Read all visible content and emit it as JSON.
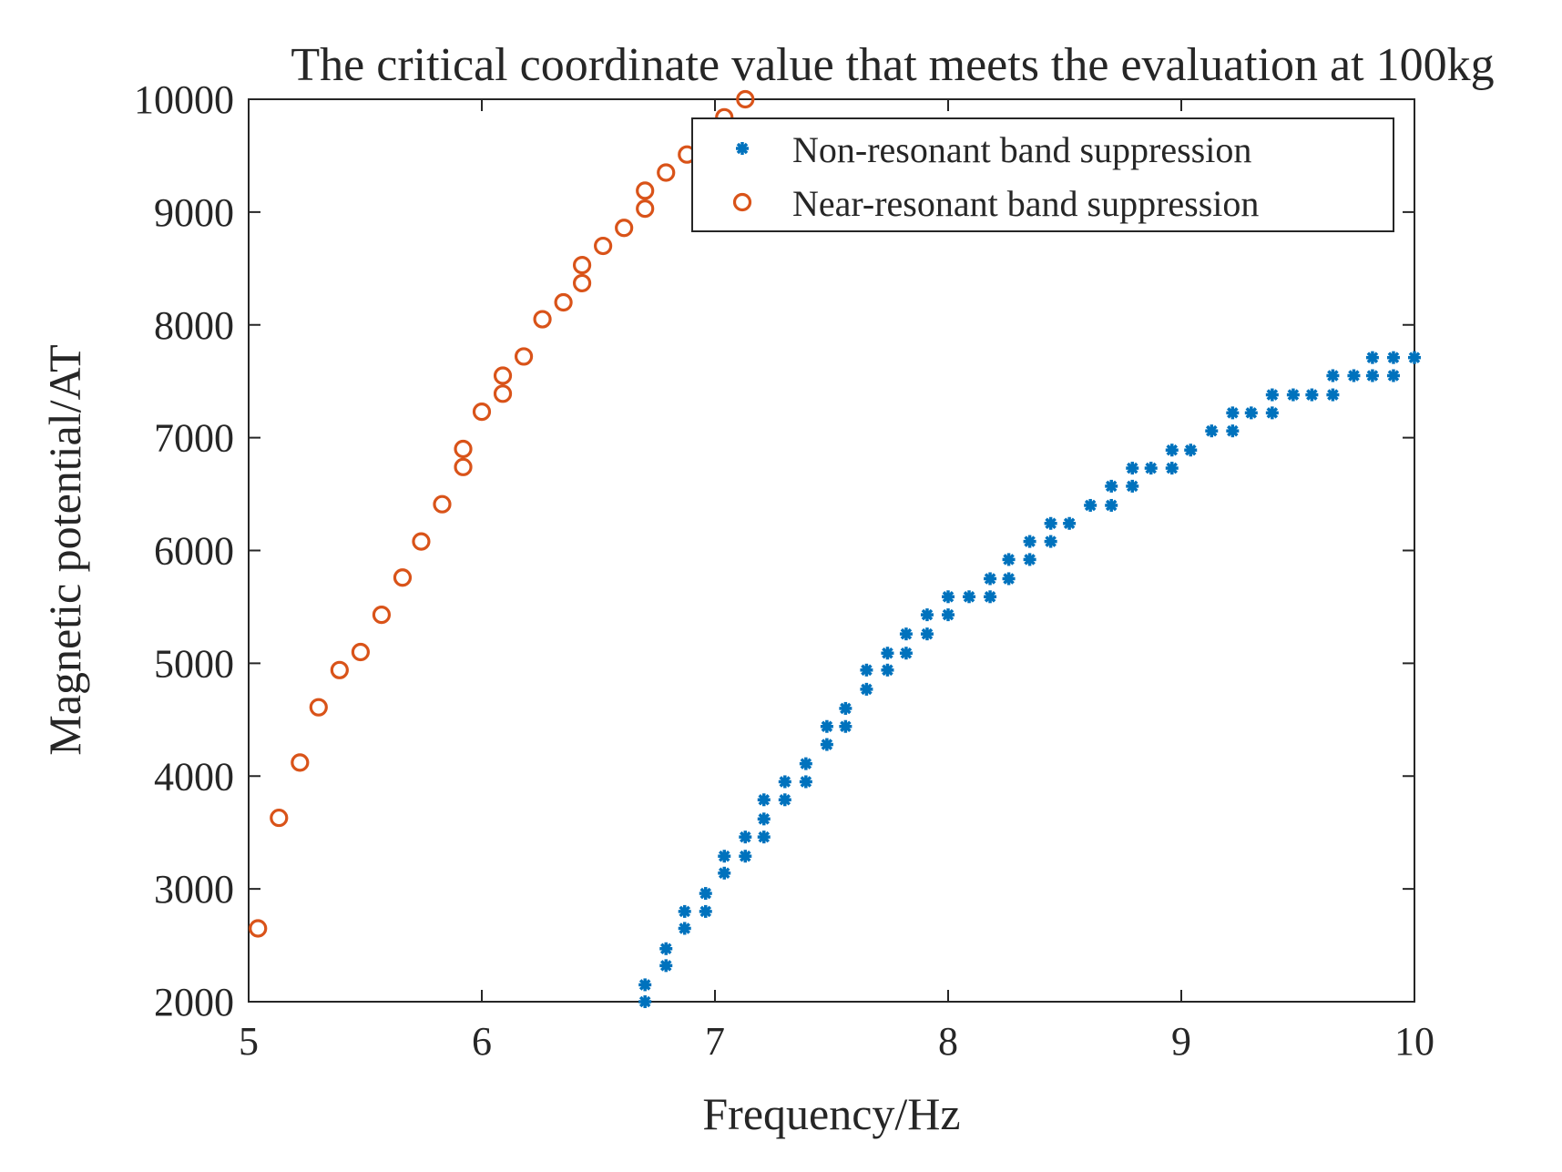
{
  "chart_data": {
    "type": "scatter",
    "title": "The critical coordinate value that meets the evaluation at 100kg",
    "xlabel": "Frequency/Hz",
    "ylabel": "Magnetic potential/AT",
    "xlim": [
      5,
      10
    ],
    "ylim": [
      2000,
      10000
    ],
    "xticks": [
      "5",
      "6",
      "7",
      "8",
      "9",
      "10"
    ],
    "yticks": [
      "2000",
      "3000",
      "4000",
      "5000",
      "6000",
      "7000",
      "8000",
      "9000",
      "10000"
    ],
    "grid": false,
    "legend_position": "top-right",
    "series": [
      {
        "name": "Non-resonant band suppression",
        "marker": "asterisk",
        "color": "#0072bd",
        "x": [
          6.7,
          6.7,
          6.79,
          6.79,
          6.87,
          6.87,
          6.96,
          6.96,
          7.04,
          7.04,
          7.13,
          7.13,
          7.21,
          7.21,
          7.21,
          7.3,
          7.3,
          7.39,
          7.39,
          7.48,
          7.48,
          7.56,
          7.56,
          7.65,
          7.65,
          7.74,
          7.74,
          7.82,
          7.82,
          7.91,
          7.91,
          8.0,
          8.0,
          8.09,
          8.18,
          8.18,
          8.26,
          8.26,
          8.35,
          8.35,
          8.44,
          8.44,
          8.52,
          8.61,
          8.7,
          8.7,
          8.79,
          8.79,
          8.87,
          8.96,
          8.96,
          9.04,
          9.13,
          9.22,
          9.22,
          9.3,
          9.39,
          9.39,
          9.48,
          9.56,
          9.65,
          9.65,
          9.74,
          9.82,
          9.82,
          9.91,
          9.91,
          10.0
        ],
        "y": [
          2000,
          2150,
          2320,
          2470,
          2650,
          2800,
          2800,
          2960,
          3140,
          3290,
          3290,
          3460,
          3460,
          3620,
          3790,
          3790,
          3950,
          3950,
          4110,
          4280,
          4440,
          4440,
          4600,
          4770,
          4940,
          4940,
          5090,
          5090,
          5260,
          5260,
          5430,
          5430,
          5590,
          5590,
          5590,
          5750,
          5750,
          5920,
          5920,
          6080,
          6080,
          6240,
          6240,
          6400,
          6400,
          6570,
          6570,
          6730,
          6730,
          6730,
          6890,
          6890,
          7060,
          7060,
          7220,
          7220,
          7220,
          7380,
          7380,
          7380,
          7380,
          7550,
          7550,
          7550,
          7710,
          7550,
          7710,
          7710
        ]
      },
      {
        "name": "Near-resonant band suppression",
        "marker": "circle",
        "color": "#d95319",
        "x": [
          5.04,
          5.13,
          5.22,
          5.3,
          5.39,
          5.48,
          5.57,
          5.66,
          5.74,
          5.83,
          5.92,
          5.92,
          6.0,
          6.09,
          6.09,
          6.18,
          6.26,
          6.35,
          6.43,
          6.43,
          6.52,
          6.61,
          6.7,
          6.7,
          6.79,
          6.88,
          7.04,
          7.13
        ],
        "y": [
          2650,
          3630,
          4120,
          4610,
          4940,
          5100,
          5430,
          5760,
          6080,
          6410,
          6740,
          6900,
          7230,
          7390,
          7550,
          7720,
          8050,
          8200,
          8370,
          8530,
          8700,
          8860,
          9030,
          9190,
          9350,
          9510,
          9840,
          10000
        ]
      }
    ]
  }
}
